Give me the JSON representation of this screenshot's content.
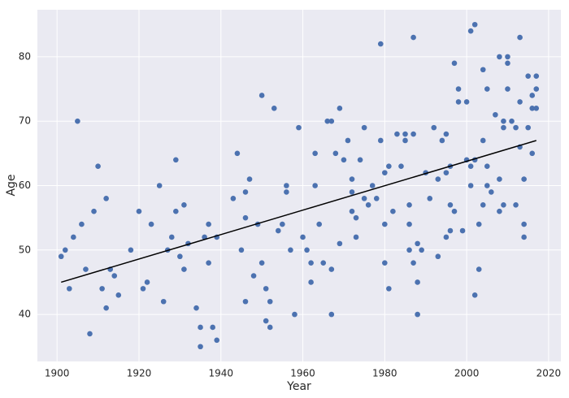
{
  "chart_data": {
    "type": "scatter",
    "xlabel": "Year",
    "ylabel": "Age",
    "x": [
      1901,
      1902,
      1903,
      1904,
      1905,
      1906,
      1907,
      1908,
      1909,
      1910,
      1911,
      1912,
      1912,
      1913,
      1914,
      1915,
      1918,
      1920,
      1921,
      1922,
      1923,
      1925,
      1926,
      1927,
      1928,
      1929,
      1929,
      1930,
      1931,
      1931,
      1932,
      1934,
      1935,
      1935,
      1936,
      1937,
      1937,
      1938,
      1939,
      1939,
      1943,
      1944,
      1945,
      1946,
      1946,
      1946,
      1947,
      1948,
      1949,
      1950,
      1950,
      1951,
      1951,
      1952,
      1952,
      1953,
      1954,
      1955,
      1956,
      1956,
      1957,
      1958,
      1959,
      1960,
      1961,
      1962,
      1962,
      1963,
      1963,
      1964,
      1965,
      1966,
      1967,
      1967,
      1967,
      1968,
      1969,
      1969,
      1970,
      1971,
      1972,
      1972,
      1972,
      1973,
      1973,
      1974,
      1975,
      1975,
      1976,
      1977,
      1978,
      1979,
      1979,
      1980,
      1980,
      1980,
      1981,
      1981,
      1982,
      1983,
      1984,
      1985,
      1985,
      1986,
      1986,
      1986,
      1987,
      1987,
      1987,
      1988,
      1988,
      1988,
      1989,
      1990,
      1991,
      1992,
      1993,
      1993,
      1994,
      1995,
      1995,
      1995,
      1996,
      1996,
      1996,
      1997,
      1997,
      1998,
      1998,
      1999,
      2000,
      2000,
      2001,
      2001,
      2001,
      2002,
      2002,
      2002,
      2003,
      2003,
      2004,
      2004,
      2004,
      2005,
      2005,
      2005,
      2006,
      2007,
      2008,
      2008,
      2008,
      2009,
      2009,
      2009,
      2010,
      2010,
      2010,
      2011,
      2012,
      2012,
      2013,
      2013,
      2013,
      2014,
      2014,
      2014,
      2015,
      2015,
      2016,
      2016,
      2016,
      2017,
      2017,
      2017
    ],
    "values": [
      49,
      50,
      44,
      52,
      70,
      54,
      47,
      37,
      56,
      63,
      44,
      41,
      58,
      47,
      46,
      43,
      50,
      56,
      44,
      45,
      54,
      60,
      42,
      50,
      52,
      56,
      64,
      49,
      47,
      57,
      51,
      41,
      38,
      35,
      52,
      54,
      48,
      38,
      36,
      52,
      58,
      65,
      50,
      55,
      42,
      59,
      61,
      46,
      54,
      74,
      48,
      44,
      39,
      42,
      38,
      72,
      53,
      54,
      60,
      59,
      50,
      40,
      69,
      52,
      50,
      48,
      45,
      65,
      60,
      54,
      48,
      70,
      70,
      47,
      40,
      65,
      72,
      51,
      64,
      67,
      61,
      59,
      56,
      55,
      52,
      64,
      69,
      58,
      57,
      60,
      58,
      82,
      67,
      62,
      54,
      48,
      63,
      44,
      56,
      68,
      63,
      68,
      67,
      57,
      54,
      50,
      83,
      68,
      48,
      51,
      45,
      40,
      50,
      62,
      58,
      69,
      49,
      61,
      67,
      68,
      62,
      52,
      63,
      57,
      53,
      79,
      56,
      75,
      73,
      53,
      73,
      64,
      84,
      63,
      60,
      85,
      64,
      43,
      54,
      47,
      78,
      67,
      57,
      75,
      63,
      60,
      59,
      71,
      80,
      61,
      56,
      70,
      69,
      57,
      80,
      79,
      75,
      70,
      69,
      57,
      83,
      73,
      66,
      61,
      54,
      52,
      77,
      69,
      74,
      72,
      65,
      77,
      75,
      72
    ],
    "color": "#4c72b0",
    "trend_line": {
      "x": [
        1901,
        2017
      ],
      "values": [
        45,
        67
      ],
      "color": "#000000"
    },
    "xlim": [
      1895.2,
      2023
    ],
    "ylim": [
      32.7,
      87.3
    ],
    "xticks": [
      1900,
      1920,
      1940,
      1960,
      1980,
      2000,
      2020
    ],
    "yticks": [
      40,
      50,
      60,
      70,
      80
    ],
    "grid": true
  }
}
